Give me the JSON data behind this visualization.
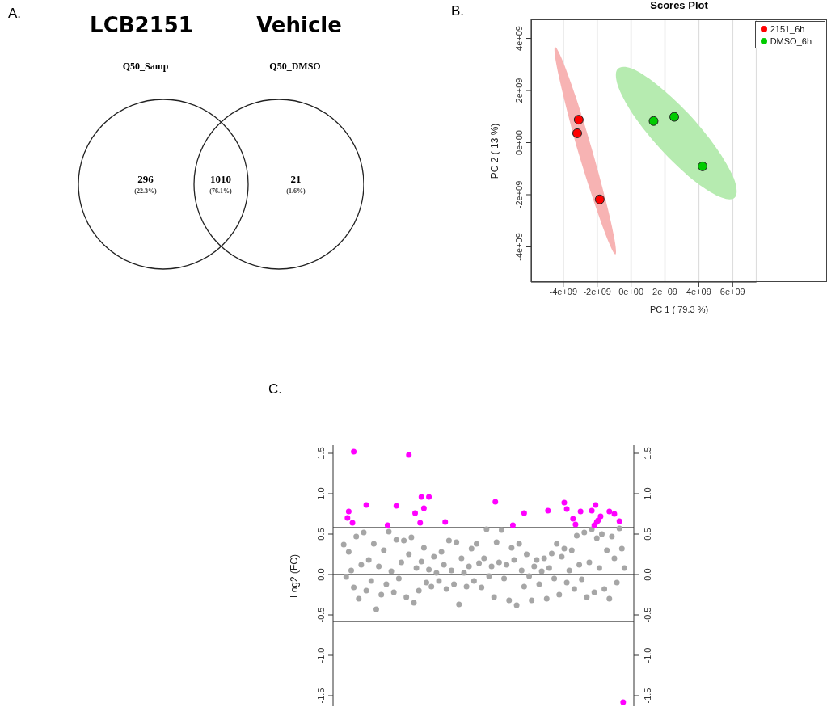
{
  "chart_data": [
    {
      "type": "other",
      "annotations": [
        "A.",
        "LCB2151",
        "Vehicle",
        "(22.3%)",
        "(76.1%)",
        "(1.6%)"
      ],
      "categories": [
        "Q50_Samp",
        null,
        "Q50_DMSO"
      ],
      "data_labels": true,
      "values": [
        296,
        1010,
        21
      ]
    },
    {
      "type": "scatter",
      "title": "Scores Plot",
      "annotations": [
        "B."
      ],
      "xlabel": "PC 1 ( 79.3 %)",
      "ylabel": "PC 2 ( 13 %)",
      "grid": true,
      "legend": "top right",
      "marker": "circle",
      "xlim": [
        -5900000000,
        7400000000
      ],
      "xticks": [
        {
          "value": -4000000000,
          "label": "-4e+09"
        },
        {
          "value": -2000000000,
          "label": "-2e+09"
        },
        {
          "value": 0,
          "label": "0e+00"
        },
        {
          "value": 2000000000,
          "label": "2e+09"
        },
        {
          "value": 4000000000,
          "label": "4e+09"
        },
        {
          "value": 6000000000,
          "label": "6e+09"
        }
      ],
      "ylim": [
        -5350000000,
        4730000000
      ],
      "yticks": [
        {
          "value": -4000000000,
          "label": "-4e+09"
        },
        {
          "value": -2000000000,
          "label": "-2e+09"
        },
        {
          "value": 0,
          "label": "0e+00"
        },
        {
          "value": 2000000000,
          "label": "2e+09"
        },
        {
          "value": 4000000000,
          "label": "4e+09"
        }
      ],
      "series": [
        {
          "type": "area",
          "marker": "none",
          "color": "#f7b3b3",
          "x": [
            -920000000,
            -980000000,
            -1500000000,
            -2340000000,
            -3280000000,
            -4070000000,
            -4490000000,
            -4430000000,
            -3910000000,
            -3090000000,
            -2120000000,
            -1330000000
          ],
          "values": [
            -4290000000,
            -3700000000,
            -2200000000,
            -190000000,
            1780000000,
            3190000000,
            3670000000,
            3070000000,
            1570000000,
            -430000000,
            -2400000000,
            -3810000000
          ]
        },
        {
          "type": "area",
          "marker": "none",
          "color": "#b6ebb0",
          "x": [
            6170000000,
            6060000000,
            5020000000,
            3360000000,
            1500000000,
            0,
            -830000000,
            -720000000,
            300000000,
            1970000000,
            3820000000,
            5380000000
          ],
          "values": [
            -2070000000,
            -1360000000,
            -190000000,
            1130000000,
            2240000000,
            2850000000,
            2790000000,
            2080000000,
            910000000,
            -400000000,
            -1510000000,
            -2120000000
          ]
        },
        {
          "name": "2151_6h",
          "color": "#ff0000",
          "x": [
            -3090000000,
            -3180000000,
            -1850000000
          ],
          "values": [
            880000000,
            360000000,
            -2180000000
          ]
        },
        {
          "name": "DMSO_6h",
          "color": "#00cc00",
          "x": [
            1330000000,
            2550000000,
            4220000000
          ],
          "values": [
            830000000,
            990000000,
            -910000000
          ]
        }
      ]
    },
    {
      "type": "scatter",
      "annotations": [
        "C."
      ],
      "ylabel": "Log2 (FC)",
      "marker": "circle",
      "tick_labels": "y",
      "ylim": [
        -1.63,
        1.6
      ],
      "yticks": [
        {
          "value": -1.5,
          "label": "-1.5"
        },
        {
          "value": -1,
          "label": "-1.0"
        },
        {
          "value": -0.5,
          "label": "-0.5"
        },
        {
          "value": 0,
          "label": "0.0"
        },
        {
          "value": 0.5,
          "label": "0.5"
        },
        {
          "value": 1,
          "label": "1.0"
        },
        {
          "value": 1.5,
          "label": "1.5"
        }
      ],
      "y2lim": [
        -1.63,
        1.6
      ],
      "y2ticks": [
        {
          "value": -1.5,
          "label": "-1.5"
        },
        {
          "value": -1,
          "label": "-1.0"
        },
        {
          "value": -0.5,
          "label": "-0.5"
        },
        {
          "value": 0,
          "label": "0.0"
        },
        {
          "value": 0.5,
          "label": "0.5"
        },
        {
          "value": 1,
          "label": "1.0"
        },
        {
          "value": 1.5,
          "label": "1.5"
        }
      ],
      "ref_lines": [
        {
          "axis": "y",
          "value": 0.58,
          "color": "#000000"
        },
        {
          "axis": "y",
          "value": 0,
          "color": "#000000"
        },
        {
          "axis": "y",
          "value": -0.58,
          "color": "#000000"
        }
      ],
      "categories": [
        null,
        null,
        null,
        null,
        null,
        null,
        null,
        null,
        null,
        null,
        null,
        null,
        null,
        null,
        null,
        null,
        null,
        null,
        null,
        null,
        null,
        null,
        null,
        null,
        null,
        null,
        null,
        null,
        null,
        null,
        null,
        null,
        null,
        null,
        null,
        null,
        null,
        null,
        null,
        null,
        null,
        null,
        null,
        null,
        null,
        null,
        null,
        null,
        null,
        null,
        null,
        null,
        null,
        null,
        null,
        null,
        null,
        null,
        null,
        null,
        null,
        null,
        null,
        null,
        null,
        null,
        null,
        null,
        null,
        null,
        null,
        null,
        null,
        null,
        null,
        null,
        null,
        null,
        null,
        null,
        null,
        null,
        null,
        null,
        null,
        null,
        null,
        null,
        null,
        null,
        null,
        null,
        null,
        null,
        null,
        null,
        null,
        null,
        null,
        null,
        null,
        null,
        null,
        null,
        null,
        null,
        null,
        null,
        null,
        null,
        null,
        null,
        null,
        null,
        null,
        null,
        null,
        null,
        null,
        null,
        null,
        null,
        null,
        null,
        null,
        null,
        null,
        null,
        null,
        null,
        null,
        null,
        null,
        null,
        null,
        null,
        null,
        null,
        null,
        null,
        null,
        null,
        null,
        null,
        null,
        null,
        null,
        null,
        null,
        null,
        null,
        null,
        null,
        null,
        null,
        null,
        null,
        null,
        null,
        null,
        null,
        null,
        null,
        null,
        null,
        null,
        null,
        null,
        null,
        null,
        null,
        null,
        null,
        null,
        null,
        null,
        null,
        null,
        null,
        null,
        null,
        null,
        null,
        null,
        null,
        null,
        null,
        null,
        null,
        null,
        null,
        null,
        null,
        null,
        null,
        null,
        null,
        null,
        null,
        null,
        null,
        null,
        null,
        null,
        null,
        null,
        null,
        null,
        null,
        null,
        null,
        null,
        null,
        null,
        null,
        null,
        null,
        null,
        null,
        null,
        null,
        null,
        null,
        null,
        null,
        null,
        null,
        null,
        null,
        null,
        null,
        null,
        null,
        null,
        null,
        null,
        null,
        null,
        null,
        null
      ],
      "series": [
        {
          "color": "#a6a6a6",
          "values": [
            null,
            null,
            null,
            null,
            null,
            null,
            null,
            null,
            0.37,
            null,
            -0.03,
            null,
            0.28,
            null,
            0.05,
            null,
            -0.16,
            null,
            0.47,
            null,
            -0.3,
            null,
            0.12,
            null,
            0.52,
            null,
            -0.2,
            null,
            0.18,
            null,
            -0.08,
            null,
            0.38,
            null,
            -0.43,
            null,
            0.1,
            null,
            -0.25,
            null,
            0.3,
            null,
            -0.12,
            null,
            0.53,
            null,
            0.04,
            null,
            -0.22,
            null,
            0.43,
            null,
            -0.05,
            null,
            0.15,
            null,
            0.42,
            null,
            -0.28,
            null,
            0.25,
            null,
            0.46,
            null,
            -0.35,
            null,
            0.08,
            null,
            -0.2,
            null,
            0.16,
            null,
            0.33,
            null,
            -0.1,
            null,
            0.06,
            null,
            -0.15,
            null,
            0.22,
            null,
            0.02,
            null,
            -0.08,
            null,
            0.28,
            null,
            0.12,
            null,
            -0.18,
            null,
            0.42,
            null,
            0.05,
            null,
            -0.12,
            null,
            0.4,
            null,
            -0.37,
            null,
            0.2,
            null,
            0.02,
            null,
            -0.15,
            null,
            0.1,
            null,
            0.32,
            null,
            -0.08,
            null,
            0.38,
            null,
            0.14,
            null,
            -0.16,
            null,
            0.2,
            null,
            0.56,
            null,
            -0.02,
            null,
            0.1,
            null,
            -0.28,
            null,
            0.4,
            null,
            0.15,
            null,
            0.55,
            null,
            -0.05,
            null,
            0.12,
            null,
            -0.32,
            null,
            0.33,
            null,
            0.18,
            null,
            -0.38,
            null,
            0.38,
            null,
            0.05,
            null,
            -0.15,
            null,
            0.25,
            null,
            -0.02,
            null,
            -0.32,
            null,
            0.1,
            null,
            0.18,
            null,
            -0.12,
            null,
            0.04,
            null,
            0.2,
            null,
            -0.3,
            null,
            0.08,
            null,
            0.26,
            null,
            -0.05,
            null,
            0.38,
            null,
            -0.25,
            null,
            0.22,
            null,
            0.32,
            null,
            -0.1,
            null,
            0.05,
            null,
            0.3,
            null,
            -0.18,
            null,
            0.48,
            null,
            0.12,
            null,
            -0.06,
            null,
            0.52,
            null,
            -0.28,
            null,
            0.15,
            null,
            0.56,
            null,
            -0.22,
            null,
            0.45,
            null,
            0.08,
            null,
            0.5,
            null,
            -0.18,
            null,
            0.3,
            null,
            -0.3,
            null,
            0.47,
            null,
            0.2,
            null,
            -0.1,
            null,
            0.57,
            null,
            0.32,
            null,
            0.08,
            null,
            null,
            null,
            null,
            null,
            null,
            null
          ]
        },
        {
          "color": "#ff00ff",
          "values": [
            null,
            null,
            null,
            null,
            null,
            null,
            null,
            null,
            null,
            null,
            null,
            0.7,
            0.78,
            null,
            null,
            0.64,
            1.52,
            null,
            null,
            null,
            null,
            null,
            null,
            null,
            null,
            null,
            0.86,
            null,
            null,
            null,
            null,
            null,
            null,
            null,
            null,
            null,
            null,
            null,
            null,
            null,
            null,
            null,
            null,
            0.61,
            null,
            null,
            null,
            null,
            null,
            null,
            0.85,
            null,
            null,
            null,
            null,
            null,
            null,
            null,
            null,
            null,
            1.48,
            null,
            null,
            null,
            null,
            0.76,
            null,
            null,
            null,
            0.64,
            0.96,
            null,
            0.82,
            null,
            null,
            null,
            0.96,
            null,
            null,
            null,
            null,
            null,
            null,
            null,
            null,
            null,
            null,
            null,
            null,
            0.65,
            null,
            null,
            null,
            null,
            null,
            null,
            null,
            null,
            null,
            null,
            null,
            null,
            null,
            null,
            null,
            null,
            null,
            null,
            null,
            null,
            null,
            null,
            null,
            null,
            null,
            null,
            null,
            null,
            null,
            null,
            null,
            null,
            null,
            null,
            null,
            null,
            null,
            null,
            null,
            0.9,
            null,
            null,
            null,
            null,
            null,
            null,
            null,
            null,
            null,
            null,
            null,
            null,
            null,
            0.61,
            null,
            null,
            null,
            null,
            null,
            null,
            null,
            null,
            0.76,
            null,
            null,
            null,
            null,
            null,
            null,
            null,
            null,
            null,
            null,
            null,
            null,
            null,
            null,
            null,
            null,
            null,
            null,
            0.79,
            null,
            null,
            null,
            null,
            null,
            null,
            null,
            null,
            null,
            null,
            null,
            null,
            0.89,
            null,
            0.81,
            null,
            null,
            null,
            null,
            0.69,
            null,
            0.62,
            null,
            null,
            null,
            0.78,
            null,
            null,
            null,
            null,
            null,
            null,
            null,
            null,
            0.79,
            null,
            0.61,
            0.86,
            0.65,
            0.67,
            null,
            0.72,
            null,
            null,
            null,
            null,
            null,
            null,
            0.78,
            null,
            null,
            null,
            0.75,
            null,
            null,
            null,
            0.66,
            null,
            null,
            -1.58,
            null,
            null,
            null,
            null,
            null,
            null,
            null,
            null
          ]
        }
      ]
    }
  ]
}
